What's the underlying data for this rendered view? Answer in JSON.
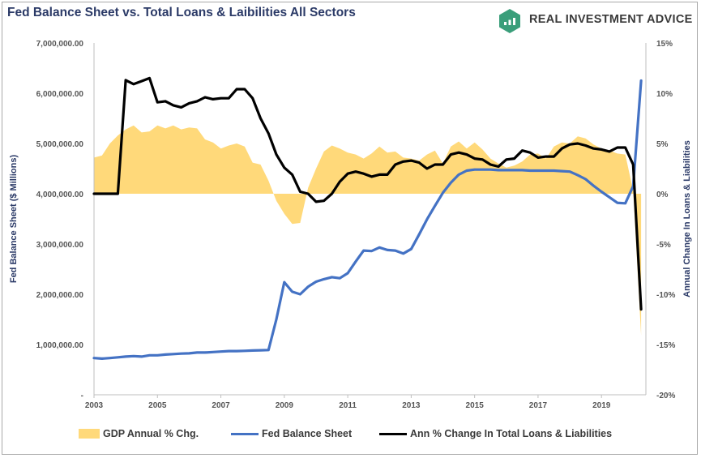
{
  "header": {
    "title": "Fed Balance Sheet vs. Total Loans & Laibilities All Sectors",
    "brand": "REAL INVESTMENT ADVICE",
    "logo_icon": "rising-bars-logo-icon"
  },
  "colors": {
    "gdp_area": "#ffd97a",
    "fed_line": "#4472c4",
    "loans_line": "#000000",
    "title": "#2b3a67",
    "logo_green": "#3a9e7a"
  },
  "chart_data": {
    "type": "line",
    "title": "Fed Balance Sheet vs. Total Loans & Laibilities All Sectors",
    "xlabel": "",
    "ylabel_left": "Fed Balance Sheet ($ Millions)",
    "ylabel_right": "Annual Change In Loans & Liabilities",
    "xlim": [
      2003,
      2020.4
    ],
    "ylim_left": [
      0,
      7000000
    ],
    "ylim_right": [
      -20,
      15
    ],
    "x_ticks": [
      "2003",
      "2005",
      "2007",
      "2009",
      "2011",
      "2013",
      "2015",
      "2017",
      "2019"
    ],
    "y_left_ticks": [
      "-",
      "1,000,000.00",
      "2,000,000.00",
      "3,000,000.00",
      "4,000,000.00",
      "5,000,000.00",
      "6,000,000.00",
      "7,000,000.00"
    ],
    "y_right_ticks": [
      "-20%",
      "-15%",
      "-10%",
      "-5%",
      "0%",
      "5%",
      "10%",
      "15%"
    ],
    "legend_position": "bottom",
    "grid": false,
    "series": [
      {
        "name": "GDP Annual % Chg.",
        "type": "area",
        "axis": "right",
        "x": [
          2003.0,
          2003.25,
          2003.5,
          2003.75,
          2004.0,
          2004.25,
          2004.5,
          2004.75,
          2005.0,
          2005.25,
          2005.5,
          2005.75,
          2006.0,
          2006.25,
          2006.5,
          2006.75,
          2007.0,
          2007.25,
          2007.5,
          2007.75,
          2008.0,
          2008.25,
          2008.5,
          2008.75,
          2009.0,
          2009.25,
          2009.5,
          2009.75,
          2010.0,
          2010.25,
          2010.5,
          2010.75,
          2011.0,
          2011.25,
          2011.5,
          2011.75,
          2012.0,
          2012.25,
          2012.5,
          2012.75,
          2013.0,
          2013.25,
          2013.5,
          2013.75,
          2014.0,
          2014.25,
          2014.5,
          2014.75,
          2015.0,
          2015.25,
          2015.5,
          2015.75,
          2016.0,
          2016.25,
          2016.5,
          2016.75,
          2017.0,
          2017.25,
          2017.5,
          2017.75,
          2018.0,
          2018.25,
          2018.5,
          2018.75,
          2019.0,
          2019.25,
          2019.5,
          2019.75,
          2020.0,
          2020.25
        ],
        "values": [
          3.6,
          3.8,
          5.0,
          5.8,
          6.4,
          6.8,
          6.1,
          6.2,
          6.8,
          6.5,
          6.8,
          6.4,
          6.6,
          6.5,
          5.4,
          5.1,
          4.5,
          4.8,
          5.0,
          4.7,
          3.1,
          2.9,
          1.3,
          -0.7,
          -2.0,
          -3.0,
          -2.9,
          0.6,
          2.5,
          4.2,
          4.8,
          4.5,
          4.1,
          3.9,
          3.5,
          4.0,
          4.7,
          4.1,
          4.2,
          3.6,
          3.5,
          3.3,
          3.9,
          4.3,
          3.0,
          4.7,
          5.2,
          4.5,
          5.1,
          4.4,
          3.5,
          3.0,
          2.6,
          2.8,
          3.2,
          3.9,
          4.0,
          3.5,
          4.7,
          5.1,
          5.0,
          5.7,
          5.5,
          4.9,
          4.5,
          4.3,
          4.0,
          3.9,
          0.3,
          -14.1
        ]
      },
      {
        "name": "Fed Balance Sheet",
        "type": "line",
        "axis": "left",
        "x": [
          2003.0,
          2003.25,
          2003.5,
          2003.75,
          2004.0,
          2004.25,
          2004.5,
          2004.75,
          2005.0,
          2005.25,
          2005.5,
          2005.75,
          2006.0,
          2006.25,
          2006.5,
          2006.75,
          2007.0,
          2007.25,
          2007.5,
          2007.75,
          2008.0,
          2008.25,
          2008.5,
          2008.75,
          2009.0,
          2009.25,
          2009.5,
          2009.75,
          2010.0,
          2010.25,
          2010.5,
          2010.75,
          2011.0,
          2011.25,
          2011.5,
          2011.75,
          2012.0,
          2012.25,
          2012.5,
          2012.75,
          2013.0,
          2013.25,
          2013.5,
          2013.75,
          2014.0,
          2014.25,
          2014.5,
          2014.75,
          2015.0,
          2015.25,
          2015.5,
          2015.75,
          2016.0,
          2016.25,
          2016.5,
          2016.75,
          2017.0,
          2017.25,
          2017.5,
          2017.75,
          2018.0,
          2018.25,
          2018.5,
          2018.75,
          2019.0,
          2019.25,
          2019.5,
          2019.75,
          2020.0,
          2020.25
        ],
        "values": [
          730000,
          720000,
          730000,
          745000,
          760000,
          770000,
          760000,
          785000,
          785000,
          800000,
          810000,
          820000,
          825000,
          840000,
          840000,
          850000,
          860000,
          870000,
          870000,
          875000,
          880000,
          885000,
          890000,
          1500000,
          2240000,
          2050000,
          2000000,
          2150000,
          2250000,
          2300000,
          2340000,
          2320000,
          2420000,
          2650000,
          2870000,
          2860000,
          2930000,
          2880000,
          2870000,
          2810000,
          2900000,
          3190000,
          3490000,
          3760000,
          4020000,
          4220000,
          4380000,
          4460000,
          4480000,
          4480000,
          4480000,
          4470000,
          4470000,
          4470000,
          4470000,
          4460000,
          4460000,
          4460000,
          4460000,
          4450000,
          4440000,
          4370000,
          4290000,
          4160000,
          4040000,
          3930000,
          3820000,
          3810000,
          4150000,
          6250000
        ]
      },
      {
        "name": "Ann % Change In Total Loans & Liabilities",
        "type": "line",
        "axis": "right",
        "x": [
          2003.0,
          2003.25,
          2003.5,
          2003.75,
          2004.0,
          2004.25,
          2004.5,
          2004.75,
          2005.0,
          2005.25,
          2005.5,
          2005.75,
          2006.0,
          2006.25,
          2006.5,
          2006.75,
          2007.0,
          2007.25,
          2007.5,
          2007.75,
          2008.0,
          2008.25,
          2008.5,
          2008.75,
          2009.0,
          2009.25,
          2009.5,
          2009.75,
          2010.0,
          2010.25,
          2010.5,
          2010.75,
          2011.0,
          2011.25,
          2011.5,
          2011.75,
          2012.0,
          2012.25,
          2012.5,
          2012.75,
          2013.0,
          2013.25,
          2013.5,
          2013.75,
          2014.0,
          2014.25,
          2014.5,
          2014.75,
          2015.0,
          2015.25,
          2015.5,
          2015.75,
          2016.0,
          2016.25,
          2016.5,
          2016.75,
          2017.0,
          2017.25,
          2017.5,
          2017.75,
          2018.0,
          2018.25,
          2018.5,
          2018.75,
          2019.0,
          2019.25,
          2019.5,
          2019.75,
          2020.0,
          2020.25
        ],
        "values": [
          0.0,
          0.0,
          0.0,
          0.0,
          11.3,
          10.9,
          11.2,
          11.5,
          9.1,
          9.2,
          8.8,
          8.6,
          9.0,
          9.2,
          9.6,
          9.4,
          9.5,
          9.5,
          10.4,
          10.4,
          9.5,
          7.5,
          6.0,
          3.9,
          2.6,
          1.9,
          0.2,
          0.0,
          -0.8,
          -0.7,
          0.0,
          1.2,
          2.0,
          2.2,
          2.0,
          1.7,
          1.9,
          1.9,
          2.9,
          3.2,
          3.3,
          3.1,
          2.5,
          2.9,
          2.9,
          3.9,
          4.1,
          3.9,
          3.5,
          3.4,
          2.9,
          2.7,
          3.4,
          3.5,
          4.3,
          4.1,
          3.6,
          3.7,
          3.7,
          4.5,
          4.9,
          5.0,
          4.8,
          4.5,
          4.4,
          4.2,
          4.6,
          4.6,
          2.9,
          -11.5
        ]
      }
    ]
  },
  "legend": {
    "items": [
      {
        "label": "GDP Annual % Chg."
      },
      {
        "label": "Fed Balance Sheet"
      },
      {
        "label": "Ann % Change In Total Loans & Liabilities"
      }
    ]
  }
}
